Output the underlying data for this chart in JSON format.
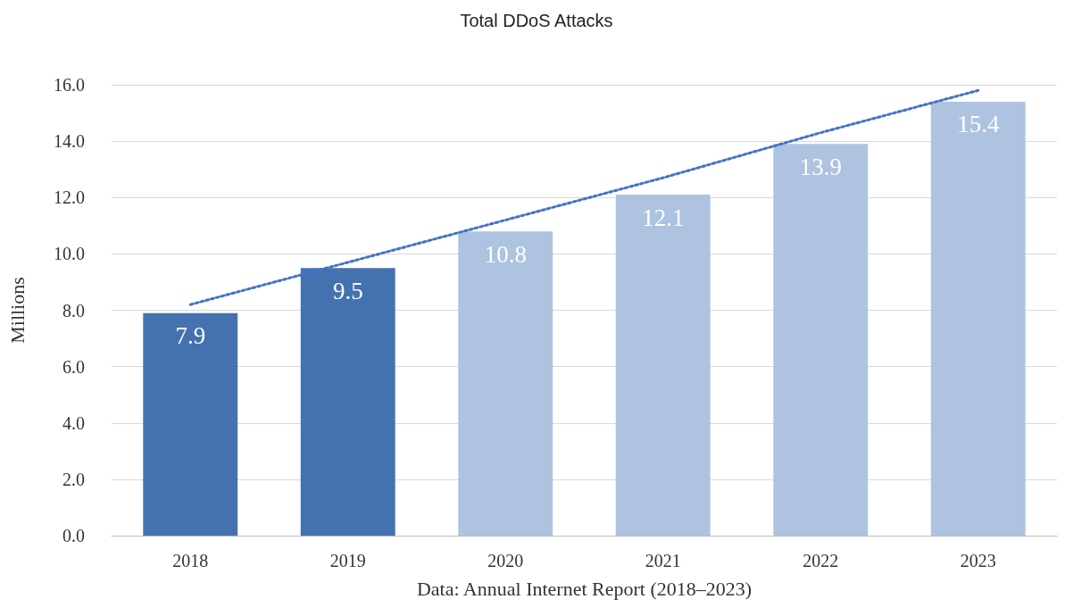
{
  "chart_data": {
    "type": "bar",
    "title": "Total DDoS Attacks",
    "xlabel": "Data: Annual Internet Report (2018–2023)",
    "ylabel": "Millions",
    "categories": [
      "2018",
      "2019",
      "2020",
      "2021",
      "2022",
      "2023"
    ],
    "series": [
      {
        "values": [
          7.9,
          9.5,
          10.8,
          12.1,
          13.9,
          15.4
        ],
        "value_labels": [
          "7.9",
          "9.5",
          "10.8",
          "12.1",
          "13.9",
          "15.4"
        ],
        "colors": [
          "#4472b0",
          "#4472b0",
          "#adc3e0",
          "#adc3e0",
          "#adc3e0",
          "#adc3e0"
        ]
      },
      {
        "type": "line",
        "values": [
          8.2,
          9.7,
          11.2,
          12.7,
          14.3,
          15.8
        ],
        "color": "#4472c4",
        "line_style": "dotted",
        "marker": "none"
      }
    ],
    "grid": "y",
    "ylim": [
      0,
      16
    ],
    "yticks": [
      {
        "value": 0,
        "label": "0.0"
      },
      {
        "value": 2,
        "label": "2.0"
      },
      {
        "value": 4,
        "label": "4.0"
      },
      {
        "value": 6,
        "label": "6.0"
      },
      {
        "value": 8,
        "label": "8.0"
      },
      {
        "value": 10,
        "label": "10.0"
      },
      {
        "value": 12,
        "label": "12.0"
      },
      {
        "value": 14,
        "label": "14.0"
      },
      {
        "value": 16,
        "label": "16.0"
      }
    ]
  }
}
